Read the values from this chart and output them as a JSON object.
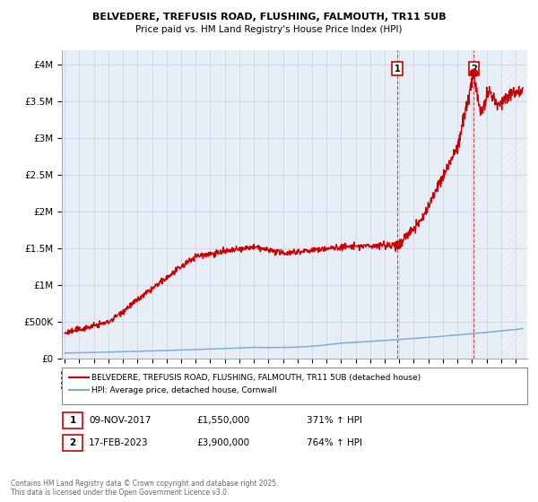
{
  "title1": "BELVEDERE, TREFUSIS ROAD, FLUSHING, FALMOUTH, TR11 5UB",
  "title2": "Price paid vs. HM Land Registry's House Price Index (HPI)",
  "ylabel_ticks": [
    "£0",
    "£500K",
    "£1M",
    "£1.5M",
    "£2M",
    "£2.5M",
    "£3M",
    "£3.5M",
    "£4M"
  ],
  "ytick_vals": [
    0,
    500000,
    1000000,
    1500000,
    2000000,
    2500000,
    3000000,
    3500000,
    4000000
  ],
  "ylim": [
    0,
    4200000
  ],
  "xlim_start": 1994.8,
  "xlim_end": 2026.8,
  "shade_start": 2025.0,
  "point1_x": 2017.86,
  "point1_y": 1550000,
  "point2_x": 2023.12,
  "point2_y": 3900000,
  "property_color": "#cc0000",
  "hpi_color": "#7aadd4",
  "background_color": "#ffffff",
  "plot_bg_color": "#e8eef8",
  "shade_color": "#d8e4f0",
  "grid_color": "#c8d0dc",
  "legend_property": "BELVEDERE, TREFUSIS ROAD, FLUSHING, FALMOUTH, TR11 5UB (detached house)",
  "legend_hpi": "HPI: Average price, detached house, Cornwall",
  "ann1_date": "09-NOV-2017",
  "ann1_price": "£1,550,000",
  "ann1_hpi": "371% ↑ HPI",
  "ann2_date": "17-FEB-2023",
  "ann2_price": "£3,900,000",
  "ann2_hpi": "764% ↑ HPI",
  "footnote": "Contains HM Land Registry data © Crown copyright and database right 2025.\nThis data is licensed under the Open Government Licence v3.0."
}
